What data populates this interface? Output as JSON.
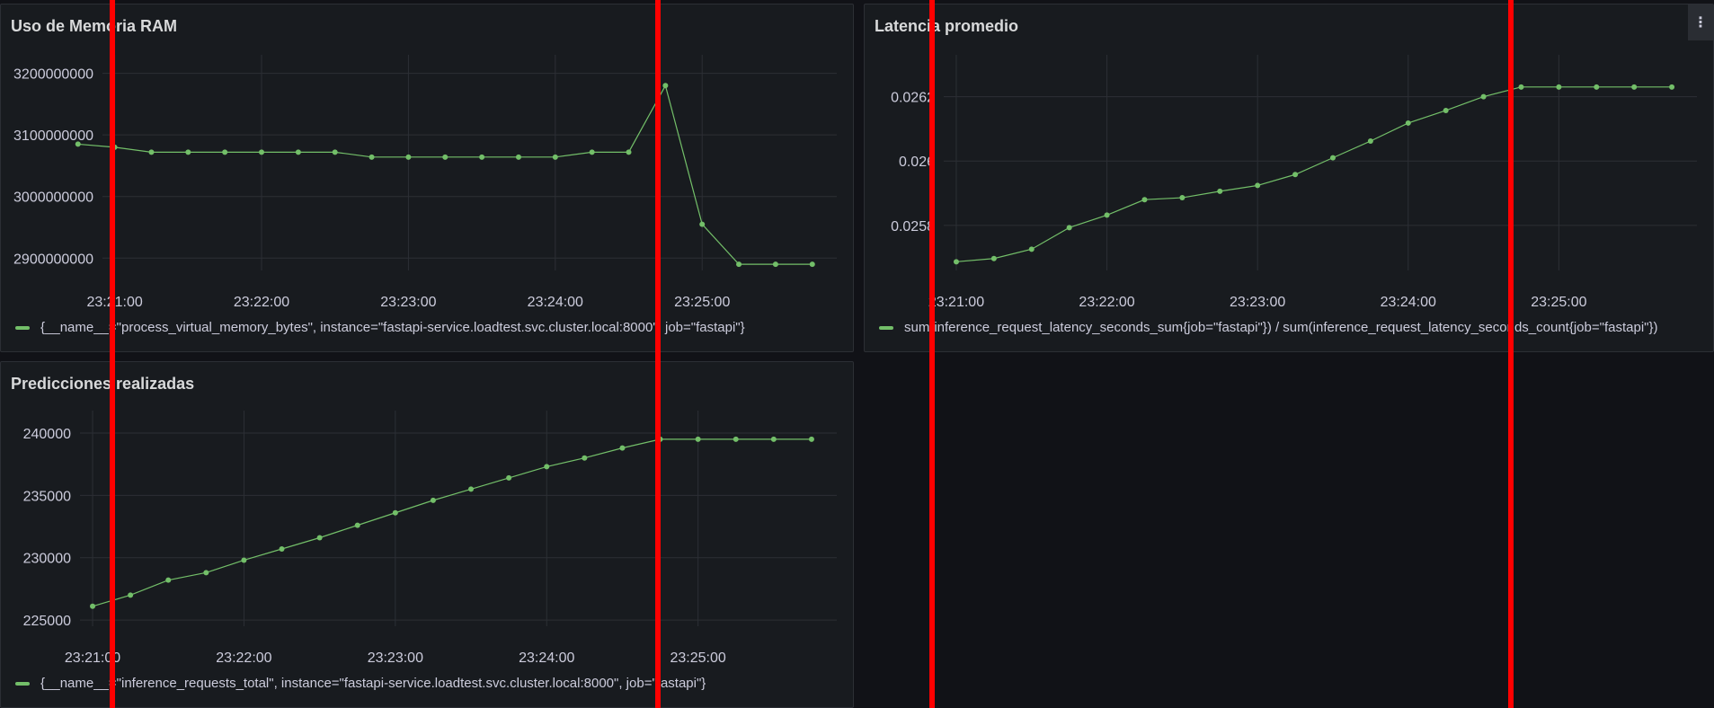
{
  "colors": {
    "series": "#73bf69",
    "grid": "#2c2f35",
    "overlay": "#ff0000"
  },
  "panels": {
    "ram": {
      "title": "Uso de Memoria RAM",
      "legend": "{__name__=\"process_virtual_memory_bytes\", instance=\"fastapi-service.loadtest.svc.cluster.local:8000\", job=\"fastapi\"}"
    },
    "latency": {
      "title": "Latencia promedio",
      "legend": "sum(inference_request_latency_seconds_sum{job=\"fastapi\"}) / sum(inference_request_latency_seconds_count{job=\"fastapi\"})",
      "menu_icon": "kebab-icon"
    },
    "predictions": {
      "title": "Predicciones realizadas",
      "legend": "{__name__=\"inference_requests_total\", instance=\"fastapi-service.loadtest.svc.cluster.local:8000\", job=\"fastapi\"}"
    }
  },
  "chart_data": [
    {
      "type": "line",
      "title": "Uso de Memoria RAM",
      "x_ticks": [
        "23:21:00",
        "23:22:00",
        "23:23:00",
        "23:24:00",
        "23:25:00"
      ],
      "y_ticks": [
        "3200000000",
        "3100000000",
        "3000000000",
        "2900000000"
      ],
      "ylim": [
        2880000000,
        3230000000
      ],
      "xlim": [
        "23:20:55",
        "23:25:55"
      ],
      "grid": true,
      "legend_position": "bottom",
      "series": [
        {
          "name": "{__name__=\"process_virtual_memory_bytes\", instance=\"fastapi-service.loadtest.svc.cluster.local:8000\", job=\"fastapi\"}",
          "x": [
            "23:20:45",
            "23:21:00",
            "23:21:15",
            "23:21:30",
            "23:21:45",
            "23:22:00",
            "23:22:15",
            "23:22:30",
            "23:22:45",
            "23:23:00",
            "23:23:15",
            "23:23:30",
            "23:23:45",
            "23:24:00",
            "23:24:15",
            "23:24:30",
            "23:24:45",
            "23:25:00",
            "23:25:15",
            "23:25:30",
            "23:25:45"
          ],
          "values": [
            3085000000,
            3080000000,
            3072000000,
            3072000000,
            3072000000,
            3072000000,
            3072000000,
            3072000000,
            3064000000,
            3064000000,
            3064000000,
            3064000000,
            3064000000,
            3064000000,
            3072000000,
            3072000000,
            3180000000,
            2955000000,
            2890000000,
            2890000000,
            2890000000
          ]
        }
      ]
    },
    {
      "type": "line",
      "title": "Latencia promedio",
      "x_ticks": [
        "23:21:00",
        "23:22:00",
        "23:23:00",
        "23:24:00",
        "23:25:00"
      ],
      "y_ticks": [
        "0.0262",
        "0.026",
        "0.0258"
      ],
      "ylim": [
        0.02566,
        0.02633
      ],
      "xlim": [
        "23:20:55",
        "23:25:55"
      ],
      "grid": true,
      "legend_position": "bottom",
      "series": [
        {
          "name": "sum(inference_request_latency_seconds_sum{job=\"fastapi\"}) / sum(inference_request_latency_seconds_count{job=\"fastapi\"})",
          "x": [
            "23:21:00",
            "23:21:15",
            "23:21:30",
            "23:21:45",
            "23:22:00",
            "23:22:15",
            "23:22:30",
            "23:22:45",
            "23:23:00",
            "23:23:15",
            "23:23:30",
            "23:23:45",
            "23:24:00",
            "23:24:15",
            "23:24:30",
            "23:24:45",
            "23:25:00",
            "23:25:15",
            "23:25:30",
            "23:25:45"
          ],
          "values": [
            0.025687,
            0.025697,
            0.025726,
            0.025793,
            0.025832,
            0.02588,
            0.025886,
            0.025906,
            0.025924,
            0.025958,
            0.02601,
            0.026062,
            0.026118,
            0.026157,
            0.0262,
            0.02623,
            0.02623,
            0.02623,
            0.02623,
            0.02623
          ]
        }
      ]
    },
    {
      "type": "line",
      "title": "Predicciones realizadas",
      "x_ticks": [
        "23:21:00",
        "23:22:00",
        "23:23:00",
        "23:24:00",
        "23:25:00"
      ],
      "y_ticks": [
        "240000",
        "235000",
        "230000",
        "225000"
      ],
      "ylim": [
        224500,
        241800
      ],
      "xlim": [
        "23:20:55",
        "23:25:55"
      ],
      "grid": true,
      "legend_position": "bottom",
      "series": [
        {
          "name": "{__name__=\"inference_requests_total\", instance=\"fastapi-service.loadtest.svc.cluster.local:8000\", job=\"fastapi\"}",
          "x": [
            "23:21:00",
            "23:21:15",
            "23:21:30",
            "23:21:45",
            "23:22:00",
            "23:22:15",
            "23:22:30",
            "23:22:45",
            "23:23:00",
            "23:23:15",
            "23:23:30",
            "23:23:45",
            "23:24:00",
            "23:24:15",
            "23:24:30",
            "23:24:45",
            "23:25:00",
            "23:25:15",
            "23:25:30",
            "23:25:45"
          ],
          "values": [
            226100,
            227000,
            228200,
            228800,
            229800,
            230700,
            231600,
            232600,
            233600,
            234600,
            235500,
            236400,
            237300,
            238000,
            238800,
            239500,
            239500,
            239500,
            239500,
            239500
          ]
        }
      ]
    }
  ]
}
